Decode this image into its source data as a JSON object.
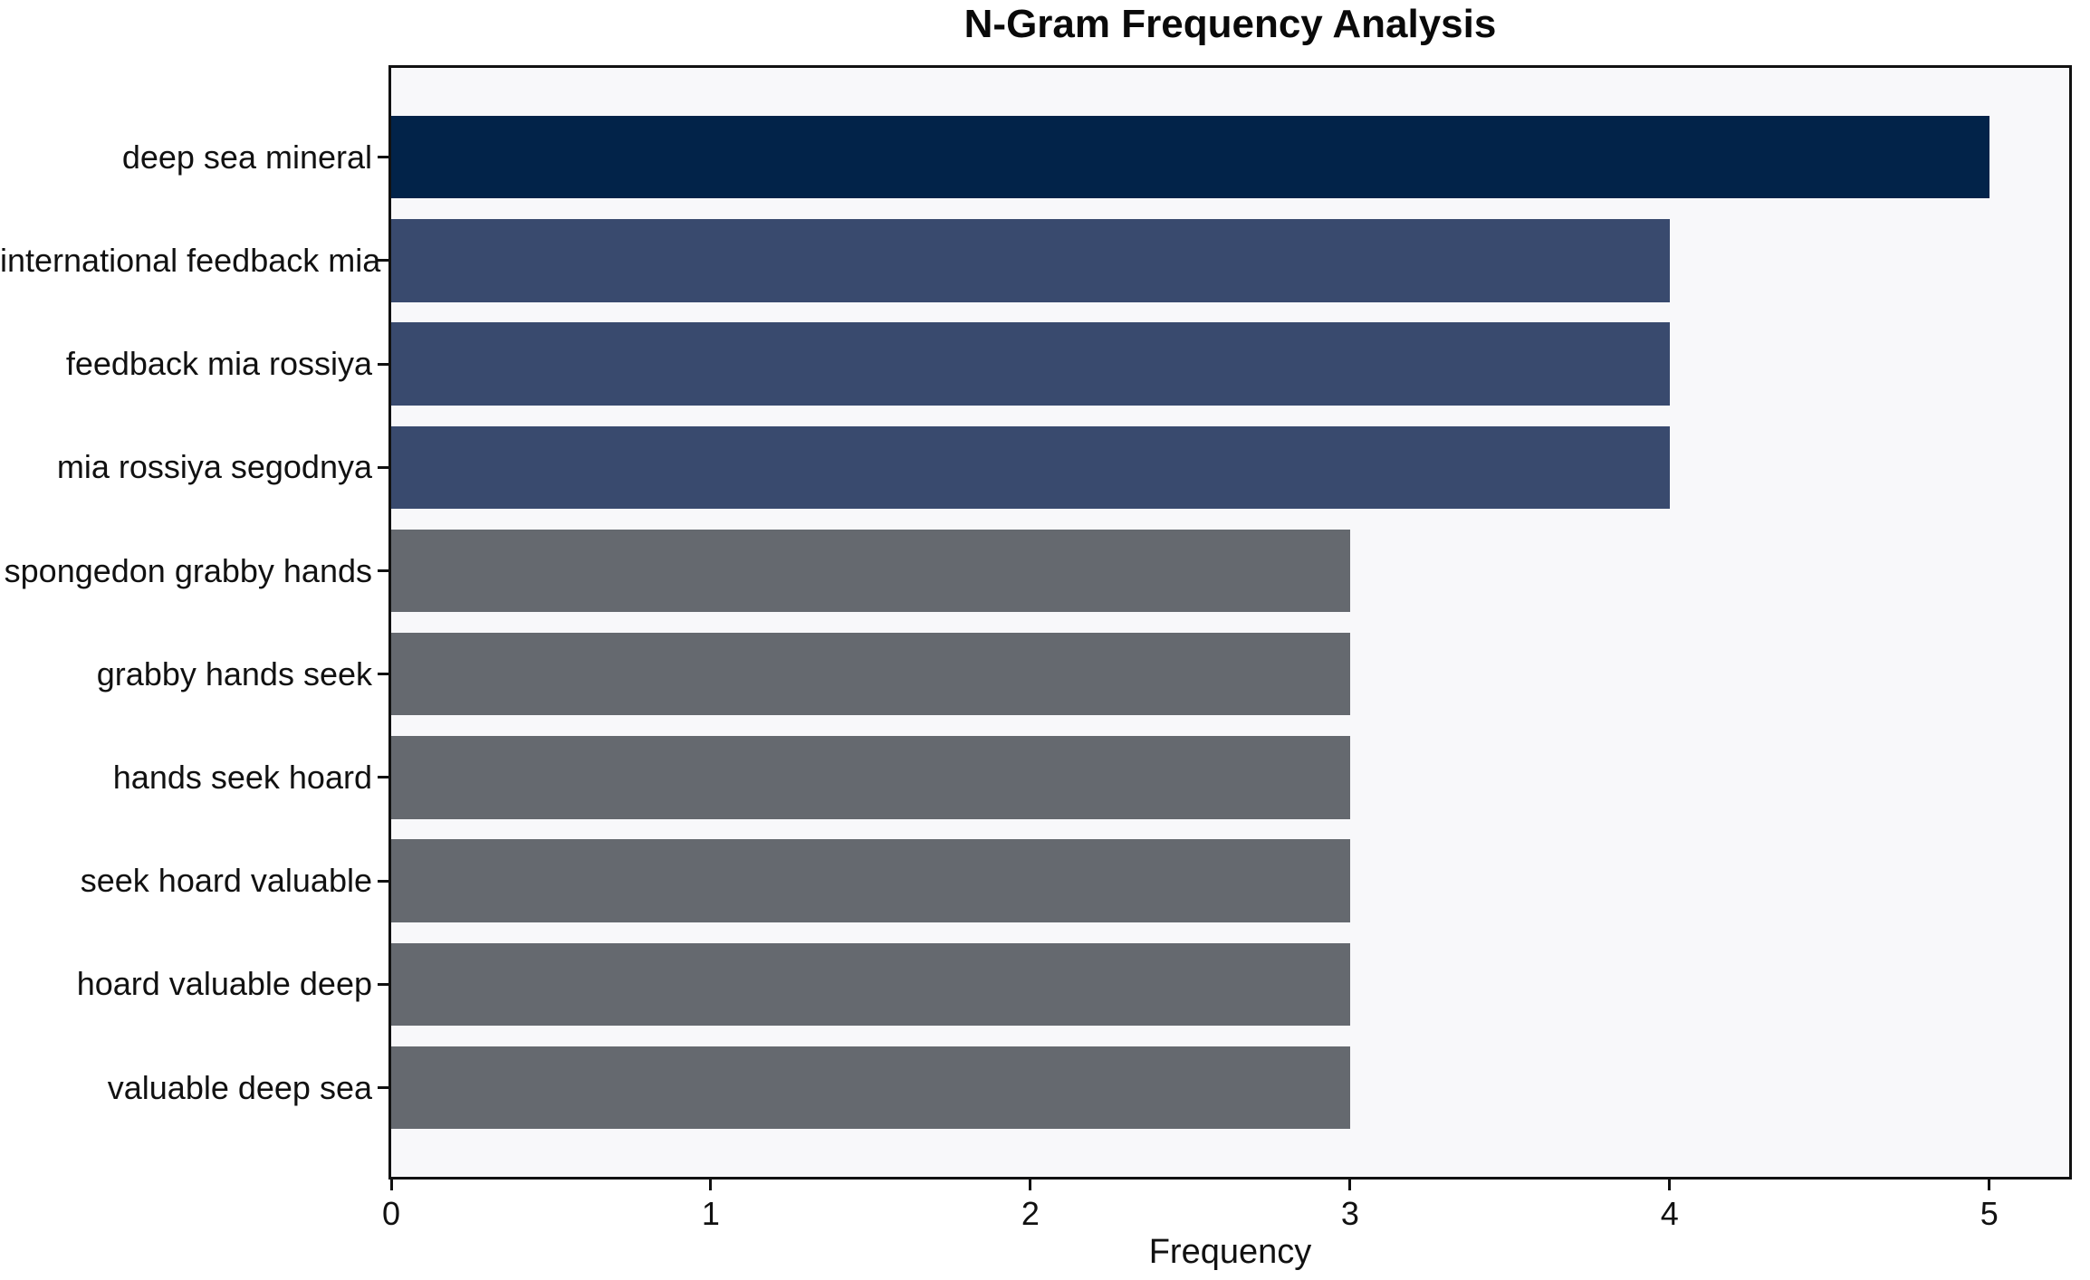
{
  "chart_data": {
    "type": "bar",
    "orientation": "horizontal",
    "title": "N-Gram Frequency Analysis",
    "xlabel": "Frequency",
    "ylabel": "",
    "categories": [
      "deep sea mineral",
      "international feedback mia",
      "feedback mia rossiya",
      "mia rossiya segodnya",
      "spongedon grabby hands",
      "grabby hands seek",
      "hands seek hoard",
      "seek hoard valuable",
      "hoard valuable deep",
      "valuable deep sea"
    ],
    "values": [
      5,
      4,
      4,
      4,
      3,
      3,
      3,
      3,
      3,
      3
    ],
    "bar_colors": [
      "#022349",
      "#394a6e",
      "#394a6e",
      "#394a6e",
      "#65696f",
      "#65696f",
      "#65696f",
      "#65696f",
      "#65696f",
      "#65696f"
    ],
    "xticks": [
      0,
      1,
      2,
      3,
      4,
      5
    ],
    "xlim": [
      0,
      5.25
    ],
    "grid": false,
    "legend": null,
    "plot_background": "#f8f8fa",
    "figure_background": "#ffffff",
    "spine_color": "#111111"
  }
}
